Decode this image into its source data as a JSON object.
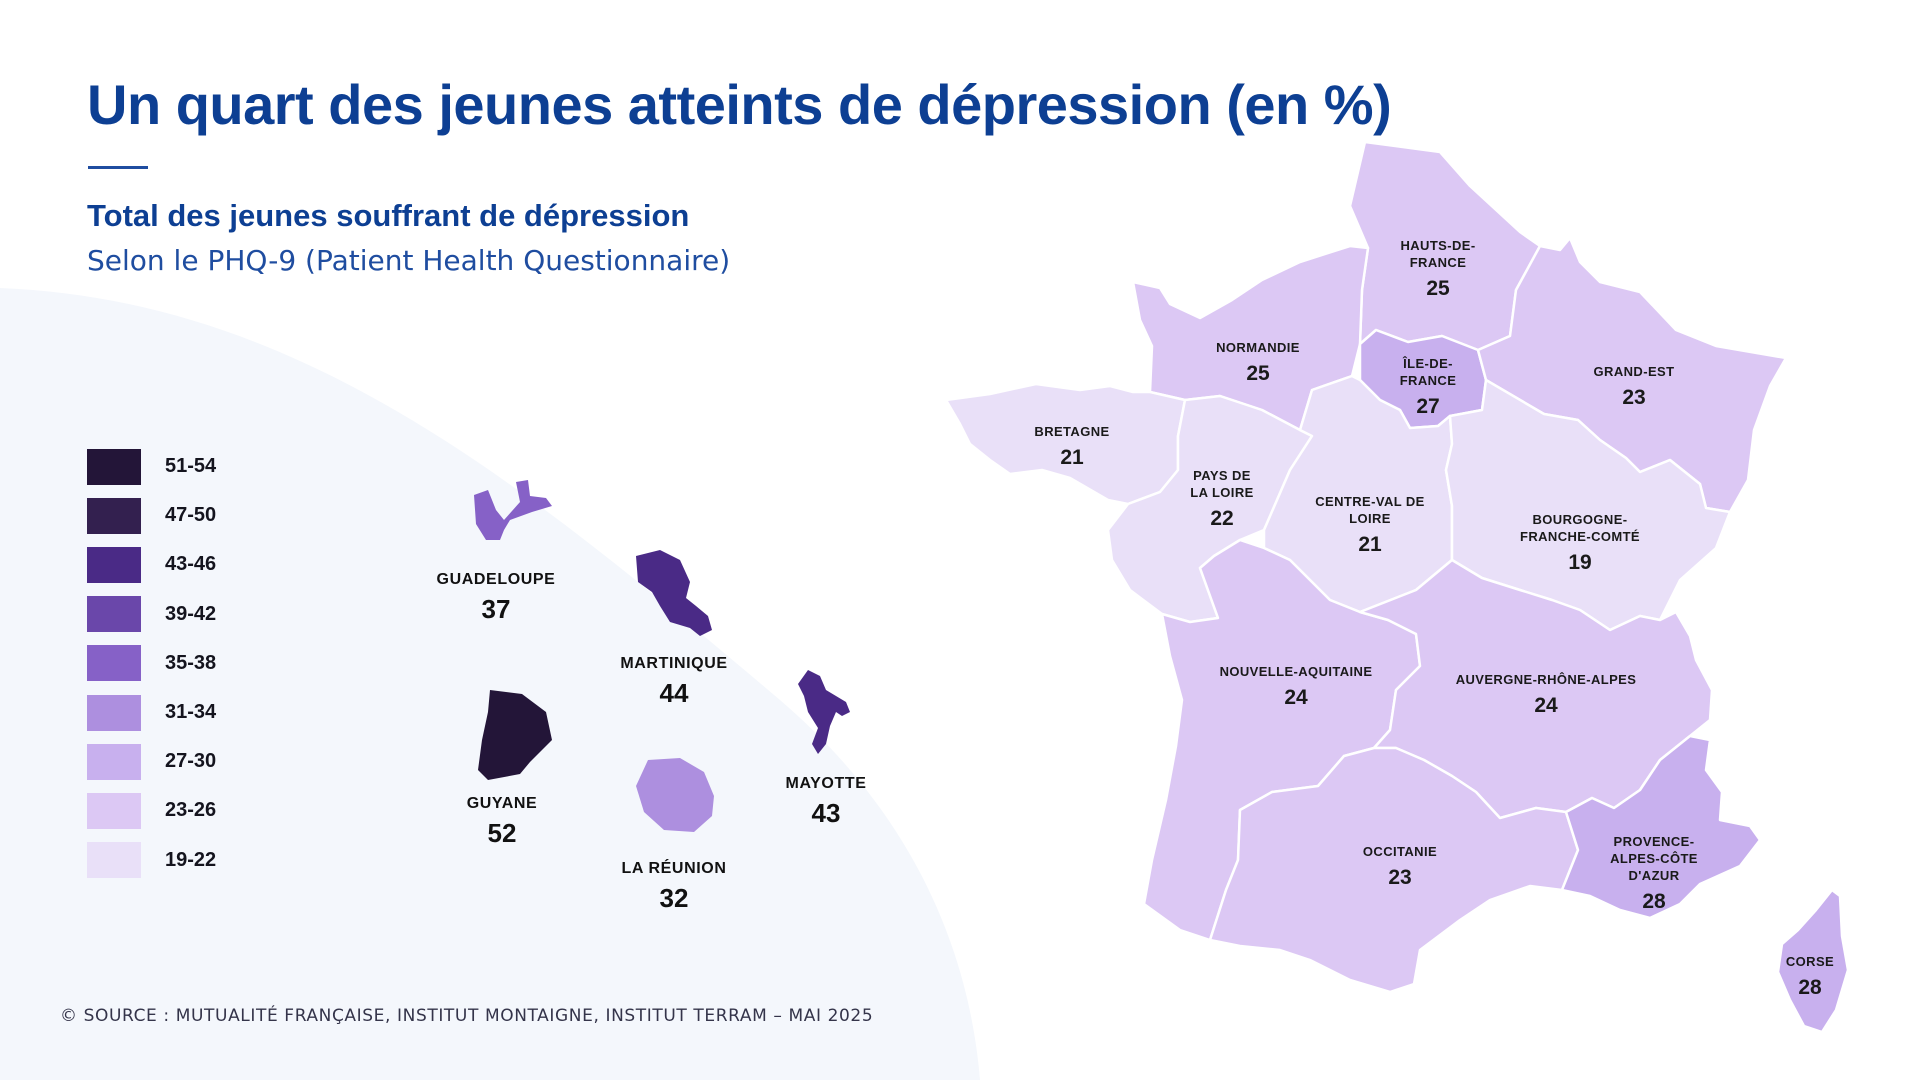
{
  "title": "Un quart des jeunes atteints de dépression (en %)",
  "subtitle": "Total des jeunes souffrant de dépression",
  "subtitle2": "Selon le PHQ-9 (Patient Health Questionnaire)",
  "source": "© SOURCE : MUTUALITÉ FRANÇAISE, INSTITUT MONTAIGNE, INSTITUT TERRAM – MAI 2025",
  "legend": [
    {
      "label": "51-54",
      "color": "#231538"
    },
    {
      "label": "47-50",
      "color": "#33204f"
    },
    {
      "label": "43-46",
      "color": "#4a2a86"
    },
    {
      "label": "39-42",
      "color": "#6a47aa"
    },
    {
      "label": "35-38",
      "color": "#8661c7"
    },
    {
      "label": "31-34",
      "color": "#ad8fdf"
    },
    {
      "label": "27-30",
      "color": "#c8b0ee"
    },
    {
      "label": "23-26",
      "color": "#dcc8f4"
    },
    {
      "label": "19-22",
      "color": "#e9e0f8"
    }
  ],
  "regions": {
    "hauts_de_france": {
      "name_lines": [
        "HAUTS-DE-",
        "FRANCE"
      ],
      "value": "25",
      "color": "#dcc8f4"
    },
    "normandie": {
      "name_lines": [
        "NORMANDIE"
      ],
      "value": "25",
      "color": "#dcc8f4"
    },
    "ile_de_france": {
      "name_lines": [
        "ÎLE-DE-",
        "FRANCE"
      ],
      "value": "27",
      "color": "#c8b0ee"
    },
    "grand_est": {
      "name_lines": [
        "GRAND-EST"
      ],
      "value": "23",
      "color": "#dcc8f4"
    },
    "bretagne": {
      "name_lines": [
        "BRETAGNE"
      ],
      "value": "21",
      "color": "#e9e0f8"
    },
    "pays_de_la_loire": {
      "name_lines": [
        "PAYS DE",
        "LA LOIRE"
      ],
      "value": "22",
      "color": "#e9e0f8"
    },
    "centre_val_de_loire": {
      "name_lines": [
        "CENTRE-VAL DE",
        "LOIRE"
      ],
      "value": "21",
      "color": "#e9e0f8"
    },
    "bourgogne_franche_comte": {
      "name_lines": [
        "BOURGOGNE-",
        "FRANCHE-COMTÉ"
      ],
      "value": "19",
      "color": "#e9e0f8"
    },
    "nouvelle_aquitaine": {
      "name_lines": [
        "NOUVELLE-AQUITAINE"
      ],
      "value": "24",
      "color": "#dcc8f4"
    },
    "auvergne_rhone_alpes": {
      "name_lines": [
        "AUVERGNE-RHÔNE-ALPES"
      ],
      "value": "24",
      "color": "#dcc8f4"
    },
    "occitanie": {
      "name_lines": [
        "OCCITANIE"
      ],
      "value": "23",
      "color": "#dcc8f4"
    },
    "paca": {
      "name_lines": [
        "PROVENCE-",
        "ALPES-CÔTE",
        "D'AZUR"
      ],
      "value": "28",
      "color": "#c8b0ee"
    },
    "corse": {
      "name_lines": [
        "CORSE"
      ],
      "value": "28",
      "color": "#c8b0ee"
    }
  },
  "overseas": {
    "guadeloupe": {
      "name": "GUADELOUPE",
      "value": "37",
      "color": "#8661c7"
    },
    "martinique": {
      "name": "MARTINIQUE",
      "value": "44",
      "color": "#4a2a86"
    },
    "guyane": {
      "name": "GUYANE",
      "value": "52",
      "color": "#231538"
    },
    "reunion": {
      "name": "LA RÉUNION",
      "value": "32",
      "color": "#ad8fdf"
    },
    "mayotte": {
      "name": "MAYOTTE",
      "value": "43",
      "color": "#4a2a86"
    }
  }
}
